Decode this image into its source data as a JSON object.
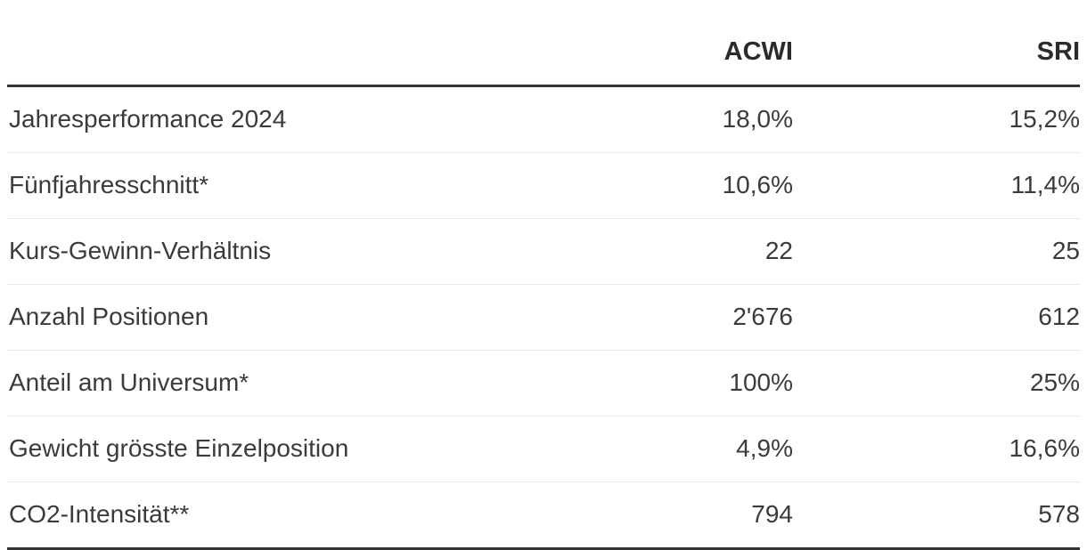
{
  "table": {
    "header": {
      "label": "",
      "acwi": "ACWI",
      "sri": "SRI"
    },
    "rows": [
      {
        "label": "Jahresperformance 2024",
        "acwi": "18,0%",
        "sri": "15,2%"
      },
      {
        "label": "Fünfjahresschnitt*",
        "acwi": "10,6%",
        "sri": "11,4%"
      },
      {
        "label": "Kurs-Gewinn-Verhältnis",
        "acwi": "22",
        "sri": "25"
      },
      {
        "label": "Anzahl Positionen",
        "acwi": "2'676",
        "sri": "612"
      },
      {
        "label": "Anteil am Universum*",
        "acwi": "100%",
        "sri": "25%"
      },
      {
        "label": "Gewicht grösste Einzelposition",
        "acwi": "4,9%",
        "sri": "16,6%"
      },
      {
        "label": "CO2-Intensität**",
        "acwi": "794",
        "sri": "578"
      }
    ]
  },
  "chart_data": {
    "type": "table",
    "title": "",
    "columns": [
      "",
      "ACWI",
      "SRI"
    ],
    "rows": [
      [
        "Jahresperformance 2024",
        "18,0%",
        "15,2%"
      ],
      [
        "Fünfjahresschnitt*",
        "10,6%",
        "11,4%"
      ],
      [
        "Kurs-Gewinn-Verhältnis",
        "22",
        "25"
      ],
      [
        "Anzahl Positionen",
        "2'676",
        "612"
      ],
      [
        "Anteil am Universum*",
        "100%",
        "25%"
      ],
      [
        "Gewicht grösste Einzelposition",
        "4,9%",
        "16,6%"
      ],
      [
        "CO2-Intensität**",
        "794",
        "578"
      ]
    ]
  },
  "colors": {
    "heavy_rule": "#333333",
    "light_rule": "#eaeaea",
    "text": "#3b3b3b",
    "header_text": "#2b2b2b",
    "background": "#ffffff"
  }
}
